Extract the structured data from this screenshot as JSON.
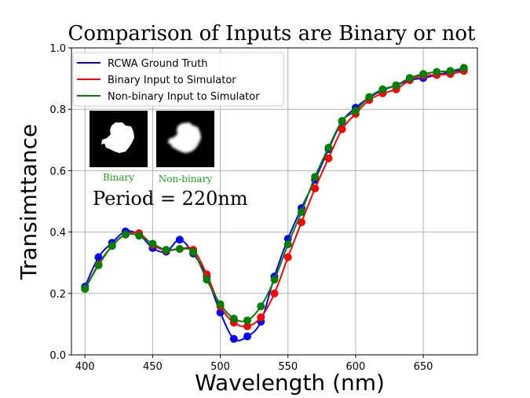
{
  "chart_data": {
    "type": "line",
    "title": "Comparison of Inputs are Binary or not",
    "xlabel": "Wavelength (nm)",
    "ylabel": "Transimttance",
    "xlim": [
      390,
      690
    ],
    "ylim": [
      0.0,
      1.0
    ],
    "xticks": [
      "400",
      "450",
      "500",
      "550",
      "600",
      "650"
    ],
    "yticks": [
      "0.0",
      "0.2",
      "0.4",
      "0.6",
      "0.8",
      "1.0"
    ],
    "grid": true,
    "legend_position": "top-left",
    "x": [
      400,
      410,
      420,
      430,
      440,
      450,
      460,
      470,
      480,
      490,
      500,
      510,
      520,
      530,
      540,
      550,
      560,
      570,
      580,
      590,
      600,
      610,
      620,
      630,
      640,
      650,
      660,
      670,
      680
    ],
    "series": [
      {
        "name": "RCWA Ground Truth",
        "color": "#0000ff",
        "values": [
          0.222,
          0.318,
          0.365,
          0.402,
          0.392,
          0.348,
          0.336,
          0.375,
          0.33,
          0.255,
          0.138,
          0.052,
          0.06,
          0.108,
          0.255,
          0.378,
          0.478,
          0.57,
          0.67,
          0.76,
          0.805,
          0.838,
          0.862,
          0.878,
          0.895,
          0.902,
          0.912,
          0.922,
          0.928
        ]
      },
      {
        "name": "Binary Input to Simulator",
        "color": "#ff0000",
        "values": [
          0.215,
          0.295,
          0.355,
          0.392,
          0.396,
          0.358,
          0.34,
          0.345,
          0.342,
          0.262,
          0.158,
          0.105,
          0.093,
          0.122,
          0.2,
          0.318,
          0.432,
          0.542,
          0.64,
          0.735,
          0.785,
          0.83,
          0.852,
          0.865,
          0.895,
          0.91,
          0.912,
          0.915,
          0.925
        ]
      },
      {
        "name": "Non-binary Input to Simulator",
        "color": "#008000",
        "values": [
          0.215,
          0.292,
          0.355,
          0.392,
          0.388,
          0.362,
          0.342,
          0.345,
          0.335,
          0.245,
          0.165,
          0.118,
          0.112,
          0.158,
          0.245,
          0.36,
          0.465,
          0.58,
          0.675,
          0.762,
          0.795,
          0.84,
          0.865,
          0.878,
          0.902,
          0.915,
          0.922,
          0.925,
          0.935
        ]
      }
    ],
    "insets": [
      {
        "caption": "Binary"
      },
      {
        "caption": "Non-binary"
      }
    ],
    "annotation": "Period = 220nm"
  }
}
